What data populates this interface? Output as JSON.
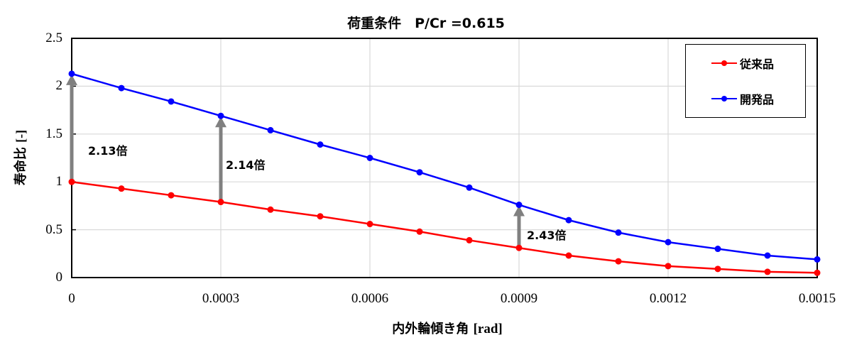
{
  "chart_data": {
    "type": "line",
    "title": "荷重条件　P/Cr =0.615",
    "xlabel": "内外輪傾き角",
    "xlabel_unit": "[rad]",
    "ylabel": "寿命比",
    "ylabel_unit": "[-]",
    "xlim": [
      0,
      0.0015
    ],
    "ylim": [
      0,
      2.5
    ],
    "grid": true,
    "legend_position": "upper right",
    "x_ticks": [
      "0",
      "0.0003",
      "0.0006",
      "0.0009",
      "0.0012",
      "0.0015"
    ],
    "y_ticks": [
      "0",
      "0.5",
      "1",
      "1.5",
      "2",
      "2.5"
    ],
    "x": [
      0,
      0.0001,
      0.0002,
      0.0003,
      0.0004,
      0.0005,
      0.0006,
      0.0007,
      0.0008,
      0.0009,
      0.001,
      0.0011,
      0.0012,
      0.0013,
      0.0014,
      0.0015
    ],
    "series": [
      {
        "name": "従来品",
        "color": "#ff0000",
        "values": [
          1.0,
          0.93,
          0.86,
          0.79,
          0.71,
          0.64,
          0.56,
          0.48,
          0.39,
          0.31,
          0.23,
          0.17,
          0.12,
          0.09,
          0.06,
          0.05
        ]
      },
      {
        "name": "開発品",
        "color": "#0000ff",
        "values": [
          2.13,
          1.98,
          1.84,
          1.69,
          1.54,
          1.39,
          1.25,
          1.1,
          0.94,
          0.76,
          0.6,
          0.47,
          0.37,
          0.3,
          0.23,
          0.19
        ]
      }
    ],
    "annotations": [
      {
        "x": 0,
        "from": 1.0,
        "to": 2.13,
        "label": "2.13倍"
      },
      {
        "x": 0.0003,
        "from": 0.79,
        "to": 1.69,
        "label": "2.14倍"
      },
      {
        "x": 0.0009,
        "from": 0.31,
        "to": 0.76,
        "label": "2.43倍"
      }
    ],
    "arrow_color": "#808080",
    "grid_color": "#d9d9d9"
  }
}
